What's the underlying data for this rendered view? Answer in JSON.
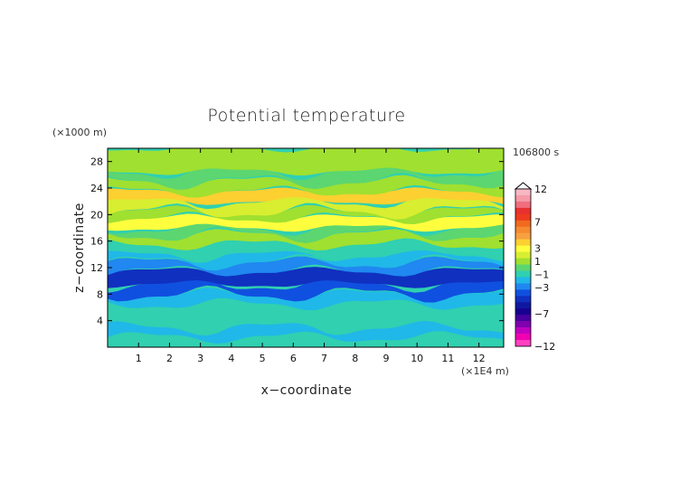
{
  "chart_data": {
    "type": "heatmap",
    "title": "Potential temperature",
    "xlabel": "x−coordinate",
    "ylabel": "z−coordinate",
    "x_unit": "(×1E4 m)",
    "y_unit": "(×1000 m)",
    "time_label": "106800 s",
    "xlim": [
      0,
      12.8
    ],
    "ylim": [
      0,
      30
    ],
    "x_ticks": [
      1,
      2,
      3,
      4,
      5,
      6,
      7,
      8,
      9,
      10,
      11,
      12
    ],
    "y_ticks": [
      4,
      8,
      12,
      16,
      20,
      24,
      28
    ],
    "colorbar": {
      "levels": [
        12,
        11,
        10,
        9,
        8,
        7,
        6,
        5,
        4,
        3,
        2,
        1,
        0,
        -1,
        -2,
        -3,
        -4,
        -5,
        -6,
        -7,
        -8,
        -9,
        -10,
        -11,
        -12
      ],
      "labels": [
        "12",
        "7",
        "3",
        "1",
        "−1",
        "−3",
        "−7",
        "−12"
      ],
      "label_values": [
        12,
        7,
        3,
        1,
        -1,
        -3,
        -7,
        -12
      ],
      "colors": [
        "#f7b8c4",
        "#f59aa8",
        "#f06e7e",
        "#e83030",
        "#ee3a1e",
        "#f06a20",
        "#f58a30",
        "#f7a040",
        "#fcd030",
        "#fefe3e",
        "#d8ee30",
        "#a0e030",
        "#5cd670",
        "#30d0b0",
        "#20b8e8",
        "#2088f0",
        "#1050e0",
        "#1030c0",
        "#1018a0",
        "#180090",
        "#4800a0",
        "#8000b0",
        "#c000c0",
        "#f000b0",
        "#ff40c0"
      ]
    },
    "bands": [
      {
        "z": [
          0,
          1.5
        ],
        "level": -1
      },
      {
        "z": [
          1.5,
          3
        ],
        "level": -2
      },
      {
        "z": [
          3,
          4.5
        ],
        "level": -1
      },
      {
        "z": [
          4.5,
          6.5
        ],
        "level": -1
      },
      {
        "z": [
          6.5,
          8
        ],
        "level": -2
      },
      {
        "z": [
          8,
          9.5
        ],
        "level": -4
      },
      {
        "z": [
          9.5,
          11.5
        ],
        "level": -5
      },
      {
        "z": [
          11.5,
          12.8
        ],
        "level": -3
      },
      {
        "z": [
          12.8,
          14
        ],
        "level": -2
      },
      {
        "z": [
          14,
          15.5
        ],
        "level": -1
      },
      {
        "z": [
          15.5,
          17
        ],
        "level": 1
      },
      {
        "z": [
          17,
          18
        ],
        "level": 0
      },
      {
        "z": [
          18,
          19.5
        ],
        "level": 3
      },
      {
        "z": [
          19.5,
          20.5
        ],
        "level": 1
      },
      {
        "z": [
          20.5,
          22
        ],
        "level": 2
      },
      {
        "z": [
          22,
          23.5
        ],
        "level": 4
      },
      {
        "z": [
          23.5,
          25
        ],
        "level": 1
      },
      {
        "z": [
          25,
          26.5
        ],
        "level": 0
      },
      {
        "z": [
          26.5,
          30
        ],
        "level": 1
      }
    ]
  }
}
